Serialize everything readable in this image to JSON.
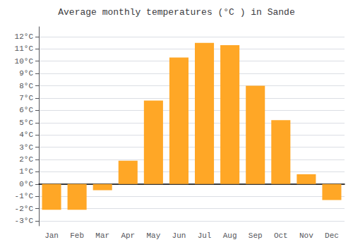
{
  "chart_data": {
    "type": "bar",
    "title": "Average monthly temperatures (°C ) in Sande",
    "categories": [
      "Jan",
      "Feb",
      "Mar",
      "Apr",
      "May",
      "Jun",
      "Jul",
      "Aug",
      "Sep",
      "Oct",
      "Nov",
      "Dec"
    ],
    "values": [
      -2.1,
      -2.1,
      -0.5,
      1.9,
      6.8,
      10.3,
      11.5,
      11.3,
      8.0,
      5.2,
      0.8,
      -1.3
    ],
    "color": "#FFA726",
    "ylim": [
      -3.4,
      12.8
    ],
    "yticks": [
      {
        "value": -3,
        "label": "-3°C"
      },
      {
        "value": -2,
        "label": "-2°C"
      },
      {
        "value": -1,
        "label": "-1°C"
      },
      {
        "value": 0,
        "label": "0°C"
      },
      {
        "value": 1,
        "label": "1°C"
      },
      {
        "value": 2,
        "label": "2°C"
      },
      {
        "value": 3,
        "label": "3°C"
      },
      {
        "value": 4,
        "label": "4°C"
      },
      {
        "value": 5,
        "label": "5°C"
      },
      {
        "value": 6,
        "label": "6°C"
      },
      {
        "value": 7,
        "label": "7°C"
      },
      {
        "value": 8,
        "label": "8°C"
      },
      {
        "value": 9,
        "label": "9°C"
      },
      {
        "value": 10,
        "label": "10°C"
      },
      {
        "value": 11,
        "label": "11°C"
      },
      {
        "value": 12,
        "label": "12°C"
      }
    ],
    "grid": true
  }
}
